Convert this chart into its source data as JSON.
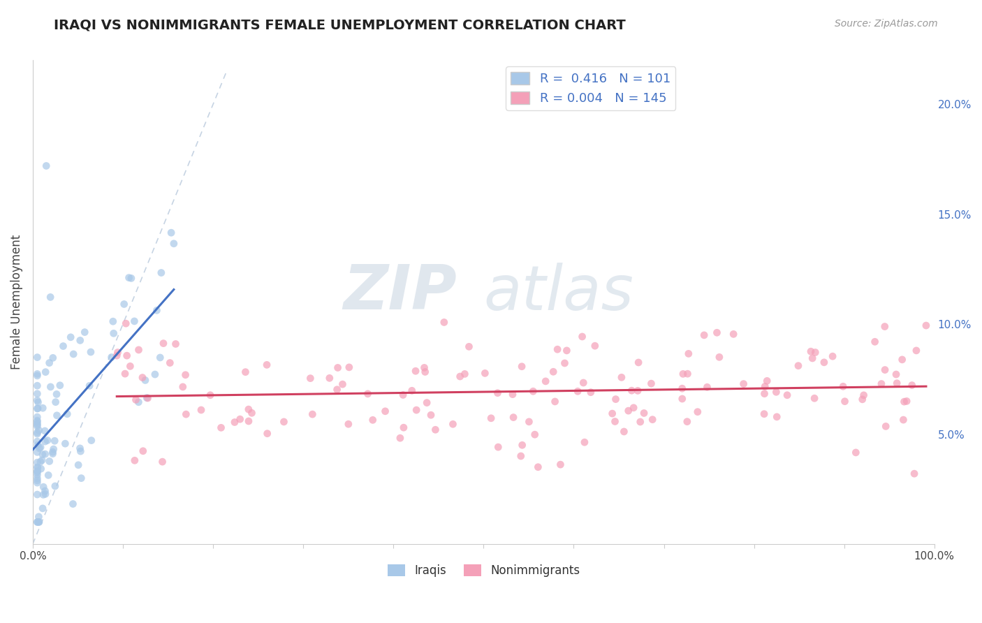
{
  "title": "IRAQI VS NONIMMIGRANTS FEMALE UNEMPLOYMENT CORRELATION CHART",
  "source_text": "Source: ZipAtlas.com",
  "ylabel": "Female Unemployment",
  "xlim": [
    0.0,
    1.0
  ],
  "ylim": [
    0.0,
    0.22
  ],
  "yticks": [
    0.05,
    0.1,
    0.15,
    0.2
  ],
  "ytick_labels": [
    "5.0%",
    "10.0%",
    "15.0%",
    "20.0%"
  ],
  "xticks": [
    0.0,
    0.1,
    0.2,
    0.3,
    0.4,
    0.5,
    0.6,
    0.7,
    0.8,
    0.9,
    1.0
  ],
  "xtick_labels": [
    "0.0%",
    "",
    "",
    "",
    "",
    "",
    "",
    "",
    "",
    "",
    "100.0%"
  ],
  "iraqis_color": "#a8c8e8",
  "nonimmigrants_color": "#f4a0b8",
  "iraqis_R": "0.416",
  "iraqis_N": "101",
  "nonimmigrants_R": "0.004",
  "nonimmigrants_N": "145",
  "iraqis_line_color": "#4472c4",
  "nonimmigrants_line_color": "#d04060",
  "diagonal_color": "#c0cfe0",
  "legend_label_iraqis": "Iraqis",
  "legend_label_nonimmigrants": "Nonimmigrants",
  "background_color": "#ffffff",
  "grid_color": "#d0d8e4",
  "watermark_zip": "ZIP",
  "watermark_atlas": "atlas",
  "label_color": "#4472c4",
  "title_color": "#222222",
  "source_color": "#999999"
}
